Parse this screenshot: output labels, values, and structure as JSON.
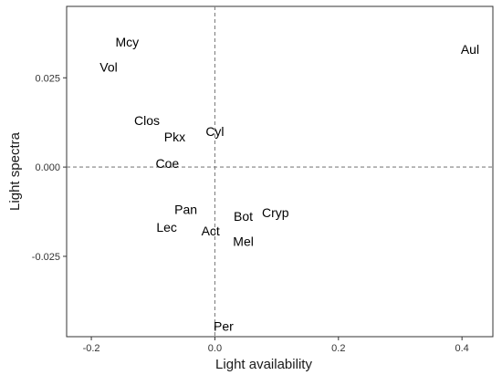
{
  "chart_data": {
    "type": "scatter",
    "xlabel": "Light availability",
    "ylabel": "Light spectra",
    "xlim": [
      -0.24,
      0.45
    ],
    "ylim": [
      -0.0475,
      0.045
    ],
    "x_ticks": [
      {
        "value": -0.2,
        "label": "-0.2"
      },
      {
        "value": 0.0,
        "label": "0.0"
      },
      {
        "value": 0.2,
        "label": "0.2"
      },
      {
        "value": 0.4,
        "label": "0.4"
      }
    ],
    "y_ticks": [
      {
        "value": 0.025,
        "label": "0.025"
      },
      {
        "value": 0.0,
        "label": "0.000"
      },
      {
        "value": -0.025,
        "label": "-0.025"
      }
    ],
    "reference_lines": {
      "x": 0.0,
      "y": 0.0,
      "style": "dashed",
      "color": "#808080"
    },
    "grid": false,
    "points": [
      {
        "label": "Mcy",
        "x": -0.142,
        "y": 0.035
      },
      {
        "label": "Vol",
        "x": -0.172,
        "y": 0.028
      },
      {
        "label": "Aul",
        "x": 0.413,
        "y": 0.033
      },
      {
        "label": "Clos",
        "x": -0.11,
        "y": 0.013
      },
      {
        "label": "Pkx",
        "x": -0.065,
        "y": 0.0085
      },
      {
        "label": "Cyl",
        "x": 0.0,
        "y": 0.01
      },
      {
        "label": "Coe",
        "x": -0.077,
        "y": 0.001
      },
      {
        "label": "Pan",
        "x": -0.047,
        "y": -0.0118
      },
      {
        "label": "Lec",
        "x": -0.078,
        "y": -0.0168
      },
      {
        "label": "Act",
        "x": -0.007,
        "y": -0.0178
      },
      {
        "label": "Bot",
        "x": 0.046,
        "y": -0.0138
      },
      {
        "label": "Cryp",
        "x": 0.098,
        "y": -0.0128
      },
      {
        "label": "Mel",
        "x": 0.046,
        "y": -0.0208
      },
      {
        "label": "Per",
        "x": 0.014,
        "y": -0.0445
      }
    ]
  }
}
